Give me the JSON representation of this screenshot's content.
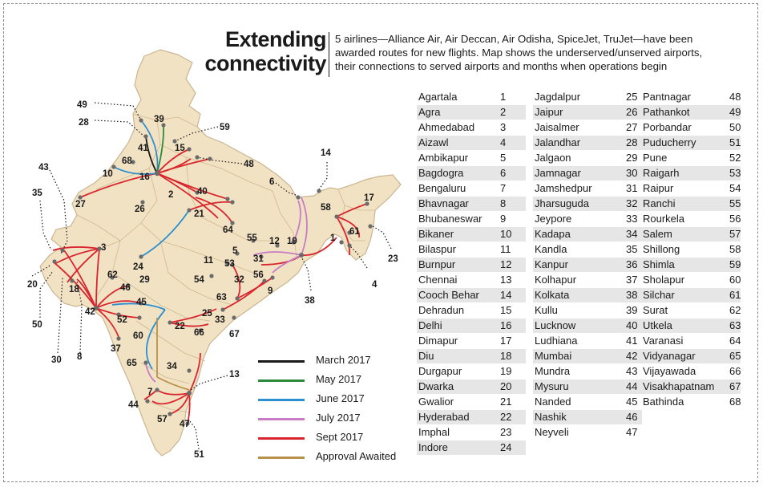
{
  "header": {
    "title_line1": "Extending",
    "title_line2": "connectivity",
    "subtitle_line1": "5 airlines—Alliance Air, Air Deccan, Air Odisha, SpiceJet, TruJet—have been",
    "subtitle_line2": "awarded routes for new flights. Map shows the underserved/unserved airports,",
    "subtitle_line3": "their connections to served airports and months when operations begin"
  },
  "colors": {
    "march": "#1a1a1a",
    "may": "#2e8b3e",
    "june": "#2b8fd0",
    "july": "#c77dc4",
    "sept": "#d9262e",
    "awaited": "#b8924a",
    "land": "#f2e2c4",
    "border": "#c9b690",
    "shade": "#e6e6e6"
  },
  "legend": [
    {
      "label": "March 2017",
      "color": "#1a1a1a"
    },
    {
      "label": "May 2017",
      "color": "#2e8b3e"
    },
    {
      "label": "June 2017",
      "color": "#2b8fd0"
    },
    {
      "label": "July 2017",
      "color": "#c77dc4"
    },
    {
      "label": "Sept 2017",
      "color": "#d9262e"
    },
    {
      "label": "Approval Awaited",
      "color": "#b8924a"
    }
  ],
  "airports": [
    {
      "id": "1",
      "name": "Agartala"
    },
    {
      "id": "2",
      "name": "Agra"
    },
    {
      "id": "3",
      "name": "Ahmedabad"
    },
    {
      "id": "4",
      "name": "Aizawl"
    },
    {
      "id": "5",
      "name": "Ambikapur"
    },
    {
      "id": "6",
      "name": "Bagdogra"
    },
    {
      "id": "7",
      "name": "Bengaluru"
    },
    {
      "id": "8",
      "name": "Bhavnagar"
    },
    {
      "id": "9",
      "name": "Bhubaneswar"
    },
    {
      "id": "10",
      "name": "Bikaner"
    },
    {
      "id": "11",
      "name": "Bilaspur"
    },
    {
      "id": "12",
      "name": "Burnpur"
    },
    {
      "id": "13",
      "name": "Chennai"
    },
    {
      "id": "14",
      "name": "Cooch Behar"
    },
    {
      "id": "15",
      "name": "Dehradun"
    },
    {
      "id": "16",
      "name": "Delhi"
    },
    {
      "id": "17",
      "name": "Dimapur"
    },
    {
      "id": "18",
      "name": "Diu"
    },
    {
      "id": "19",
      "name": "Durgapur"
    },
    {
      "id": "20",
      "name": "Dwarka"
    },
    {
      "id": "21",
      "name": "Gwalior"
    },
    {
      "id": "22",
      "name": "Hyderabad"
    },
    {
      "id": "23",
      "name": "Imphal"
    },
    {
      "id": "24",
      "name": "Indore"
    },
    {
      "id": "25",
      "name": "Jagdalpur"
    },
    {
      "id": "26",
      "name": "Jaipur"
    },
    {
      "id": "27",
      "name": "Jaisalmer"
    },
    {
      "id": "28",
      "name": "Jalandhar"
    },
    {
      "id": "29",
      "name": "Jalgaon"
    },
    {
      "id": "30",
      "name": "Jamnagar"
    },
    {
      "id": "31",
      "name": "Jamshedpur"
    },
    {
      "id": "32",
      "name": "Jharsuguda"
    },
    {
      "id": "33",
      "name": "Jeypore"
    },
    {
      "id": "34",
      "name": "Kadapa"
    },
    {
      "id": "35",
      "name": "Kandla"
    },
    {
      "id": "36",
      "name": "Kanpur"
    },
    {
      "id": "37",
      "name": "Kolhapur"
    },
    {
      "id": "38",
      "name": "Kolkata"
    },
    {
      "id": "39",
      "name": "Kullu"
    },
    {
      "id": "40",
      "name": "Lucknow"
    },
    {
      "id": "41",
      "name": "Ludhiana"
    },
    {
      "id": "42",
      "name": "Mumbai"
    },
    {
      "id": "43",
      "name": "Mundra"
    },
    {
      "id": "44",
      "name": "Mysuru"
    },
    {
      "id": "45",
      "name": "Nanded"
    },
    {
      "id": "46",
      "name": "Nashik"
    },
    {
      "id": "47",
      "name": "Neyveli"
    },
    {
      "id": "48",
      "name": "Pantnagar"
    },
    {
      "id": "49",
      "name": "Pathankot"
    },
    {
      "id": "50",
      "name": "Porbandar"
    },
    {
      "id": "51",
      "name": "Puducherry"
    },
    {
      "id": "52",
      "name": "Pune"
    },
    {
      "id": "53",
      "name": "Raigarh"
    },
    {
      "id": "54",
      "name": "Raipur"
    },
    {
      "id": "55",
      "name": "Ranchi"
    },
    {
      "id": "56",
      "name": "Rourkela"
    },
    {
      "id": "57",
      "name": "Salem"
    },
    {
      "id": "58",
      "name": "Shillong"
    },
    {
      "id": "59",
      "name": "Shimla"
    },
    {
      "id": "60",
      "name": "Sholapur"
    },
    {
      "id": "61",
      "name": "Silchar"
    },
    {
      "id": "62",
      "name": "Surat"
    },
    {
      "id": "63",
      "name": "Utkela"
    },
    {
      "id": "64",
      "name": "Varanasi"
    },
    {
      "id": "65",
      "name": "Vidyanagar"
    },
    {
      "id": "66",
      "name": "Vijayawada"
    },
    {
      "id": "67",
      "name": "Visakhapatnam"
    },
    {
      "id": "68",
      "name": "Bathinda"
    }
  ]
}
